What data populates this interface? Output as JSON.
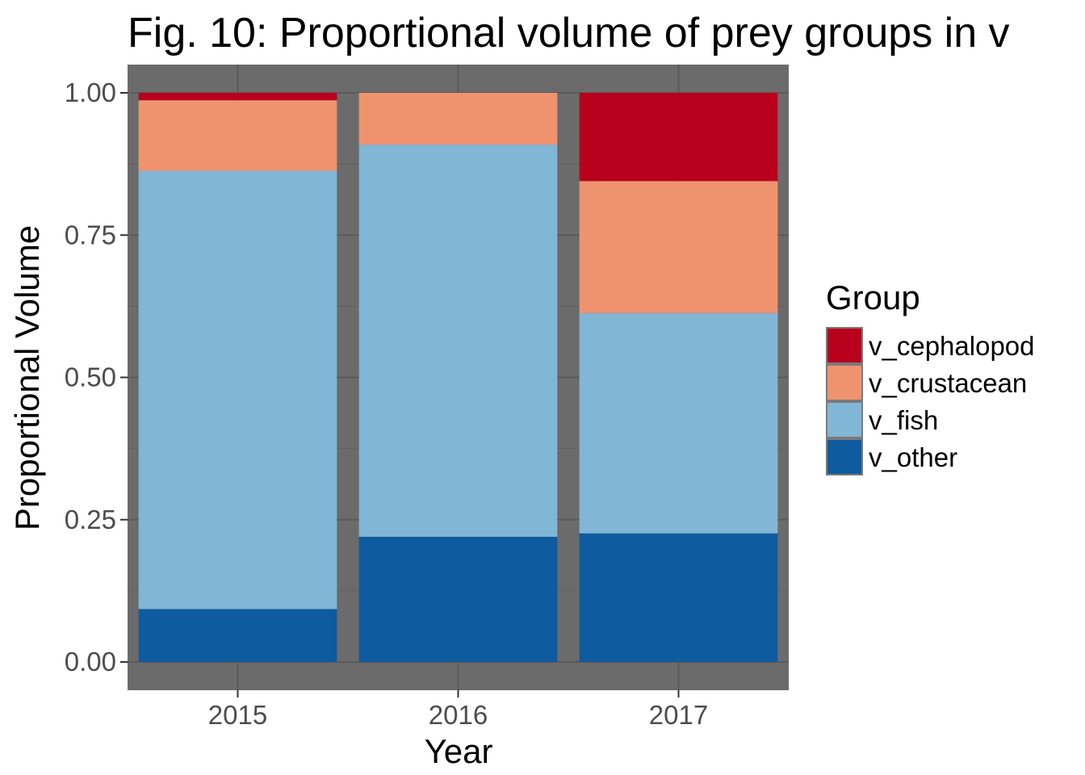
{
  "chart_data": {
    "type": "bar",
    "stacked": true,
    "title": "Fig. 10: Proportional volume of prey groups in v",
    "xlabel": "Year",
    "ylabel": "Proportional Volume",
    "categories": [
      "2015",
      "2016",
      "2017"
    ],
    "ylim": [
      0,
      1
    ],
    "yticks": [
      "0.00",
      "0.25",
      "0.50",
      "0.75",
      "1.00"
    ],
    "ytick_values": [
      0,
      0.25,
      0.5,
      0.75,
      1.0
    ],
    "grid": true,
    "legend_title": "Group",
    "legend_position": "right",
    "panel_background": "#6b6b6b",
    "series": [
      {
        "name": "v_other",
        "color": "#0e5ba0",
        "values": [
          0.093,
          0.22,
          0.226
        ]
      },
      {
        "name": "v_fish",
        "color": "#82b6d6",
        "values": [
          0.77,
          0.689,
          0.387
        ]
      },
      {
        "name": "v_crustacean",
        "color": "#ef936f",
        "values": [
          0.124,
          0.091,
          0.232
        ]
      },
      {
        "name": "v_cephalopod",
        "color": "#b9001d",
        "values": [
          0.013,
          0.0,
          0.155
        ]
      }
    ],
    "legend_order": [
      "v_cephalopod",
      "v_crustacean",
      "v_fish",
      "v_other"
    ]
  }
}
